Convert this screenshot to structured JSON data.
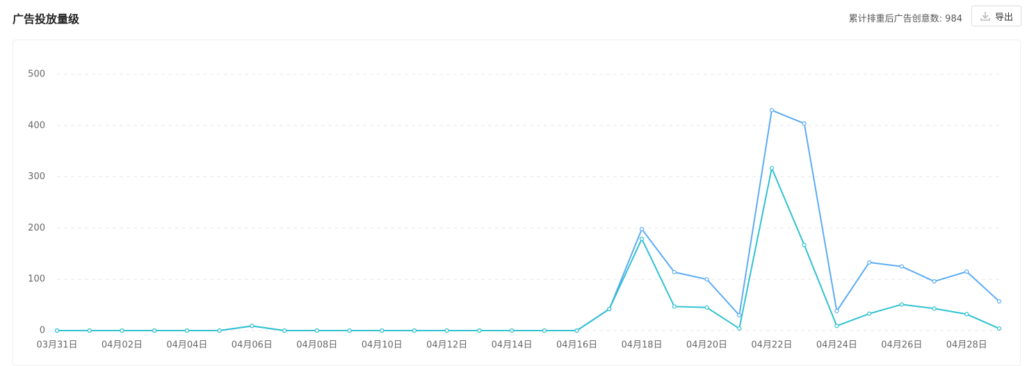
{
  "header": {
    "title": "广告投放量级",
    "stat_label": "累计排重后广告创意数:",
    "stat_value": 984,
    "export_button": "导出"
  },
  "chart_data": {
    "type": "line",
    "categories": [
      "03月31日",
      null,
      "04月02日",
      null,
      "04月04日",
      null,
      "04月06日",
      null,
      "04月08日",
      null,
      "04月10日",
      null,
      "04月12日",
      null,
      "04月14日",
      null,
      "04月16日",
      null,
      "04月18日",
      null,
      "04月20日",
      null,
      "04月22日",
      null,
      "04月24日",
      null,
      "04月26日",
      null,
      "04月28日",
      null
    ],
    "series": [
      {
        "color": "#5aabf5",
        "values": [
          0,
          0,
          0,
          0,
          0,
          0,
          9,
          0,
          0,
          0,
          0,
          0,
          0,
          0,
          0,
          0,
          0,
          42,
          198,
          114,
          100,
          30,
          430,
          404,
          38,
          133,
          125,
          96,
          115,
          57
        ]
      },
      {
        "color": "#2ec1d0",
        "values": [
          0,
          0,
          0,
          0,
          0,
          0,
          9,
          0,
          0,
          0,
          0,
          0,
          0,
          0,
          0,
          0,
          0,
          42,
          179,
          47,
          45,
          4,
          317,
          167,
          9,
          33,
          51,
          43,
          32,
          4
        ]
      }
    ],
    "ylim": [
      0,
      500
    ],
    "yticks": [
      0,
      100,
      200,
      300,
      400,
      500
    ],
    "grid": true
  }
}
